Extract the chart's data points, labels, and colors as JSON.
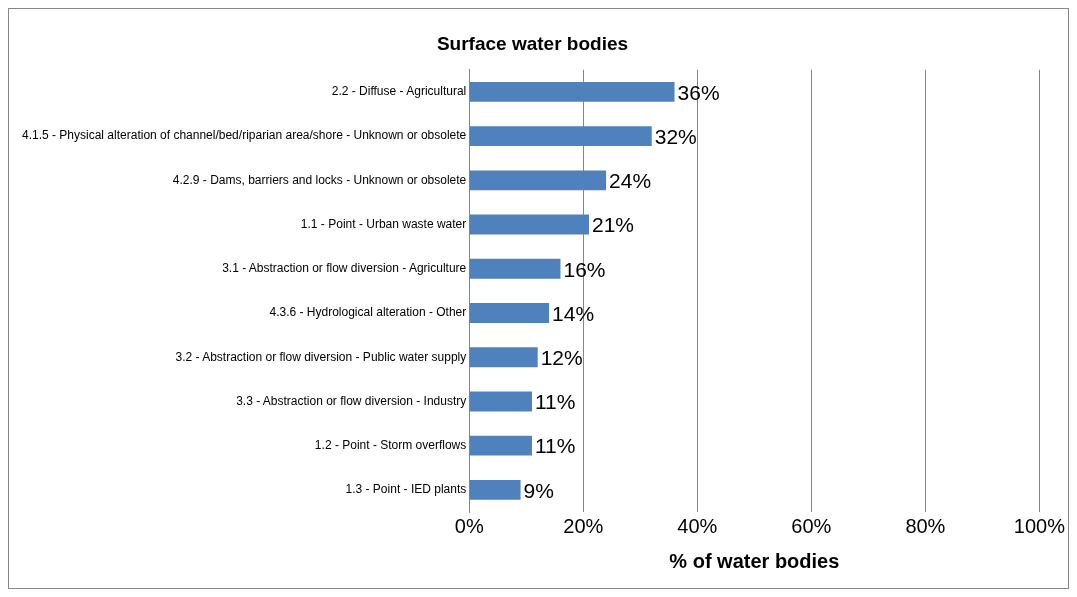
{
  "chart_data": {
    "type": "bar",
    "orientation": "horizontal",
    "title": "Surface water bodies",
    "xlabel": "% of water bodies",
    "categories": [
      "2.2 - Diffuse - Agricultural",
      "4.1.5 - Physical alteration of channel/bed/riparian area/shore - Unknown or obsolete",
      "4.2.9 - Dams, barriers and locks - Unknown or obsolete",
      "1.1 - Point - Urban waste water",
      "3.1 - Abstraction or flow diversion - Agriculture",
      "4.3.6 - Hydrological alteration - Other",
      "3.2 - Abstraction or flow diversion - Public water supply",
      "3.3 - Abstraction or flow diversion - Industry",
      "1.2 - Point - Storm overflows",
      "1.3 - Point - IED plants"
    ],
    "values": [
      36,
      32,
      24,
      21,
      16,
      14,
      12,
      11,
      11,
      9
    ],
    "value_labels": [
      "36%",
      "32%",
      "24%",
      "21%",
      "16%",
      "14%",
      "12%",
      "11%",
      "11%",
      "9%"
    ],
    "color": "#4f81bd",
    "xlim": [
      0,
      100
    ],
    "xticks": [
      {
        "value": 0,
        "label": "0%"
      },
      {
        "value": 20,
        "label": "20%"
      },
      {
        "value": 40,
        "label": "40%"
      },
      {
        "value": 60,
        "label": "60%"
      },
      {
        "value": 80,
        "label": "80%"
      },
      {
        "value": 100,
        "label": "100%"
      }
    ],
    "grid": "x",
    "legend": false
  }
}
